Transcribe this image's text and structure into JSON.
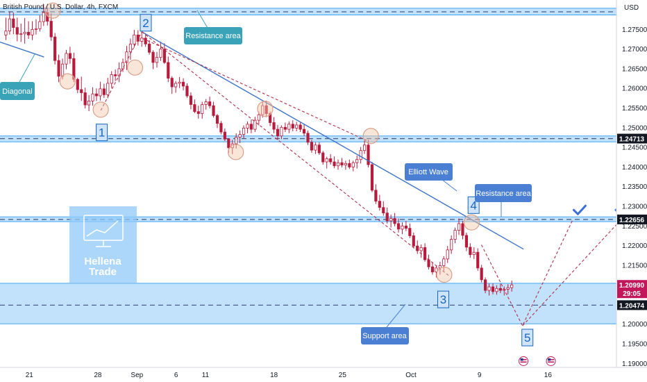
{
  "header": {
    "symbol_title": "British Pound / U.S. Dollar, 4h, FXCM",
    "currency": "USD"
  },
  "watermark": {
    "line1": "Hellena",
    "line2": "Trade"
  },
  "colors": {
    "zone_fill": "#90caf9",
    "zone_line": "#42a5f5",
    "trend_line": "#3d74c6",
    "projection": "#b0304a",
    "candle_up": "#b81a3c",
    "candle_down": "#b81a3c",
    "callout_teal": "#3ba3b8",
    "callout_blue": "#4a7fd4",
    "wave_label": "#1565c0",
    "price_tag_dark": "#131722",
    "price_tag_red": "#c2185b"
  },
  "chart_data": {
    "type": "candlestick",
    "title": "British Pound / U.S. Dollar, 4h, FXCM",
    "y_axis": {
      "ylim": [
        1.1889,
        1.2824
      ],
      "tick_labels": [
        "1.27500",
        "1.27000",
        "1.26500",
        "1.26000",
        "1.25500",
        "1.25000",
        "1.24500",
        "1.24000",
        "1.23500",
        "1.23000",
        "1.22500",
        "1.22000",
        "1.21500",
        "1.21000",
        "1.20500",
        "1.20000",
        "1.19500",
        "1.19000"
      ],
      "tick_values": [
        1.275,
        1.27,
        1.265,
        1.26,
        1.255,
        1.25,
        1.245,
        1.24,
        1.235,
        1.23,
        1.225,
        1.22,
        1.215,
        1.21,
        1.205,
        1.2,
        1.195,
        1.19
      ]
    },
    "x_axis": {
      "xlim_days": [
        0,
        63
      ],
      "tick_labels": [
        "21",
        "28",
        "Sep",
        "6",
        "11",
        "18",
        "25",
        "Oct",
        "9",
        "16"
      ],
      "tick_days": [
        3,
        10,
        14,
        18,
        21,
        28,
        35,
        42,
        49,
        56
      ]
    },
    "price_tags": [
      {
        "label": "1.24713",
        "price": 1.24713,
        "style": "dark"
      },
      {
        "label": "1.22656",
        "price": 1.22656,
        "style": "dark"
      },
      {
        "label": "1.20990",
        "sub": "29:05",
        "price": 1.2099,
        "style": "red"
      },
      {
        "label": "1.20474",
        "price": 1.20474,
        "style": "dark"
      }
    ],
    "zones": [
      {
        "name": "top-resistance-zone",
        "from": 1.2786,
        "to": 1.2803,
        "dashed_at": 1.2794
      },
      {
        "name": "mid-resistance-zone",
        "from": 1.2463,
        "to": 1.2478,
        "dashed_at": 1.24713
      },
      {
        "name": "resistance-zone",
        "from": 1.226,
        "to": 1.2272,
        "dashed_at": 1.22656
      },
      {
        "name": "support-zone",
        "from": 1.2,
        "to": 1.2103,
        "dashed_at": 1.20474
      }
    ],
    "trend_lines": [
      {
        "name": "diagonal-line",
        "from": {
          "day": 0,
          "price": 1.2717
        },
        "to": {
          "day": 4.5,
          "price": 1.2679
        }
      },
      {
        "name": "descending-trendline",
        "from": {
          "day": 14.5,
          "price": 1.2743
        },
        "to": {
          "day": 53.5,
          "price": 1.219
        }
      }
    ],
    "projection_paths": [
      {
        "name": "channel-line-1",
        "points": [
          {
            "day": 14.5,
            "price": 1.2743
          },
          {
            "day": 46,
            "price": 1.212
          }
        ]
      },
      {
        "name": "channel-line-2",
        "points": [
          {
            "day": 14.6,
            "price": 1.2726
          },
          {
            "day": 37.6,
            "price": 1.2465
          }
        ]
      },
      {
        "name": "wave-path-1-2",
        "points": [
          {
            "day": 10.3,
            "price": 1.2543
          },
          {
            "day": 14.5,
            "price": 1.2743
          }
        ]
      },
      {
        "name": "wave-path-forecast",
        "points": [
          {
            "day": 49.2,
            "price": 1.2201
          },
          {
            "day": 53.4,
            "price": 1.1995
          },
          {
            "day": 58.5,
            "price": 1.2263
          }
        ]
      },
      {
        "name": "wave-path-alt",
        "points": [
          {
            "day": 53.4,
            "price": 1.1995
          },
          {
            "day": 63.4,
            "price": 1.2263
          }
        ]
      }
    ],
    "circles": [
      {
        "day": 5.4,
        "price": 1.2797
      },
      {
        "day": 6.9,
        "price": 1.2617
      },
      {
        "day": 10.3,
        "price": 1.2545
      },
      {
        "day": 13.8,
        "price": 1.2652
      },
      {
        "day": 24.1,
        "price": 1.2437
      },
      {
        "day": 27.1,
        "price": 1.2547
      },
      {
        "day": 37.9,
        "price": 1.2478
      },
      {
        "day": 45.4,
        "price": 1.2125
      },
      {
        "day": 48.2,
        "price": 1.2258
      }
    ],
    "wave_labels": [
      {
        "label": "1",
        "day": 10.4,
        "price": 1.2487
      },
      {
        "label": "2",
        "day": 14.9,
        "price": 1.2766
      },
      {
        "label": "3",
        "day": 45.3,
        "price": 1.2062
      },
      {
        "label": "4",
        "day": 48.4,
        "price": 1.2302
      },
      {
        "label": "5",
        "day": 53.9,
        "price": 1.1965
      }
    ],
    "callouts": [
      {
        "name": "resistance-area-top",
        "text": "Resistance area",
        "style": "teal"
      },
      {
        "name": "diagonal",
        "text": "Diagonal",
        "style": "teal"
      },
      {
        "name": "elliott-wave",
        "text": "Elliott Wave",
        "style": "blue"
      },
      {
        "name": "resistance-area-right",
        "text": "Resistance area",
        "style": "blue"
      },
      {
        "name": "support-area",
        "text": "Support area",
        "style": "blue"
      }
    ],
    "checkmarks": [
      {
        "day": 59.2,
        "price": 1.2288
      },
      {
        "day": 63.5,
        "price": 1.2288
      }
    ],
    "event_markers": [
      {
        "day": 53.5,
        "price": 1.1905
      },
      {
        "day": 56.3,
        "price": 1.1905
      }
    ],
    "candles": [
      [
        1.2735,
        1.2779,
        1.2722,
        1.2745
      ],
      [
        1.2745,
        1.2795,
        1.2736,
        1.2776
      ],
      [
        1.2776,
        1.2792,
        1.2737,
        1.2754
      ],
      [
        1.2754,
        1.2779,
        1.2719,
        1.2737
      ],
      [
        1.2737,
        1.2764,
        1.2717,
        1.2738
      ],
      [
        1.2738,
        1.2778,
        1.2713,
        1.2742
      ],
      [
        1.2742,
        1.277,
        1.2725,
        1.2735
      ],
      [
        1.2735,
        1.277,
        1.2722,
        1.2749
      ],
      [
        1.2749,
        1.2775,
        1.2736,
        1.2751
      ],
      [
        1.2751,
        1.2785,
        1.2744,
        1.2769
      ],
      [
        1.2769,
        1.2813,
        1.2758,
        1.2792
      ],
      [
        1.2792,
        1.2804,
        1.2759,
        1.277
      ],
      [
        1.277,
        1.279,
        1.272,
        1.273
      ],
      [
        1.273,
        1.274,
        1.266,
        1.267
      ],
      [
        1.267,
        1.2685,
        1.2615,
        1.263
      ],
      [
        1.263,
        1.2675,
        1.2622,
        1.2661
      ],
      [
        1.2661,
        1.2697,
        1.2648,
        1.2688
      ],
      [
        1.2688,
        1.2705,
        1.2662,
        1.2675
      ],
      [
        1.2675,
        1.269,
        1.2615,
        1.2622
      ],
      [
        1.2622,
        1.2626,
        1.2587,
        1.2596
      ],
      [
        1.2596,
        1.2629,
        1.2567,
        1.2588
      ],
      [
        1.2588,
        1.2601,
        1.2548,
        1.2557
      ],
      [
        1.2557,
        1.2582,
        1.2541,
        1.2567
      ],
      [
        1.2567,
        1.2602,
        1.2555,
        1.2585
      ],
      [
        1.2585,
        1.2599,
        1.2567,
        1.258
      ],
      [
        1.258,
        1.2616,
        1.2568,
        1.2598
      ],
      [
        1.2598,
        1.2611,
        1.2575,
        1.2583
      ],
      [
        1.2583,
        1.2626,
        1.2574,
        1.2612
      ],
      [
        1.2612,
        1.2643,
        1.26,
        1.2634
      ],
      [
        1.2634,
        1.2647,
        1.2618,
        1.2631
      ],
      [
        1.2631,
        1.2665,
        1.2615,
        1.2649
      ],
      [
        1.2649,
        1.2675,
        1.2641,
        1.2665
      ],
      [
        1.2665,
        1.2707,
        1.2646,
        1.2692
      ],
      [
        1.2692,
        1.2726,
        1.2672,
        1.2712
      ],
      [
        1.2712,
        1.2748,
        1.2703,
        1.2735
      ],
      [
        1.2735,
        1.2747,
        1.2708,
        1.2719
      ],
      [
        1.2719,
        1.2746,
        1.2705,
        1.2727
      ],
      [
        1.2727,
        1.2738,
        1.2705,
        1.2712
      ],
      [
        1.2712,
        1.2722,
        1.2685,
        1.2691
      ],
      [
        1.2691,
        1.2696,
        1.2648,
        1.2665
      ],
      [
        1.2665,
        1.2692,
        1.2652,
        1.2678
      ],
      [
        1.2678,
        1.2718,
        1.2669,
        1.2699
      ],
      [
        1.2699,
        1.2714,
        1.2661,
        1.2665
      ],
      [
        1.2665,
        1.268,
        1.2615,
        1.2625
      ],
      [
        1.2625,
        1.263,
        1.2585,
        1.2603
      ],
      [
        1.2603,
        1.2618,
        1.2588,
        1.2612
      ],
      [
        1.2612,
        1.2628,
        1.26,
        1.2615
      ],
      [
        1.2615,
        1.2625,
        1.2594,
        1.2605
      ],
      [
        1.2605,
        1.2612,
        1.2575,
        1.258
      ],
      [
        1.258,
        1.2589,
        1.2546,
        1.2558
      ],
      [
        1.2558,
        1.2571,
        1.2536,
        1.254
      ],
      [
        1.254,
        1.2555,
        1.2522,
        1.2535
      ],
      [
        1.2535,
        1.2565,
        1.2522,
        1.2558
      ],
      [
        1.2558,
        1.2572,
        1.2545,
        1.2565
      ],
      [
        1.2565,
        1.2578,
        1.2548,
        1.2555
      ],
      [
        1.2555,
        1.2565,
        1.2525,
        1.253
      ],
      [
        1.253,
        1.2534,
        1.2498,
        1.251
      ],
      [
        1.251,
        1.2516,
        1.2482,
        1.2488
      ],
      [
        1.2488,
        1.2497,
        1.2465,
        1.247
      ],
      [
        1.247,
        1.2472,
        1.2435,
        1.2448
      ],
      [
        1.2448,
        1.2468,
        1.2432,
        1.2458
      ],
      [
        1.2458,
        1.2485,
        1.2446,
        1.2475
      ],
      [
        1.2475,
        1.2492,
        1.246,
        1.2482
      ],
      [
        1.2482,
        1.2505,
        1.2472,
        1.2498
      ],
      [
        1.2498,
        1.2515,
        1.2485,
        1.2508
      ],
      [
        1.2508,
        1.252,
        1.2485,
        1.2495
      ],
      [
        1.2495,
        1.2527,
        1.2488,
        1.2518
      ],
      [
        1.2518,
        1.254,
        1.2505,
        1.2532
      ],
      [
        1.2532,
        1.2566,
        1.2525,
        1.2555
      ],
      [
        1.2555,
        1.2568,
        1.2526,
        1.2535
      ],
      [
        1.2535,
        1.254,
        1.2503,
        1.2512
      ],
      [
        1.2512,
        1.2526,
        1.2485,
        1.2495
      ],
      [
        1.2495,
        1.2506,
        1.2468,
        1.2478
      ],
      [
        1.2478,
        1.2505,
        1.247,
        1.25
      ],
      [
        1.25,
        1.2512,
        1.2488,
        1.2495
      ],
      [
        1.2495,
        1.2515,
        1.2485,
        1.2508
      ],
      [
        1.2508,
        1.2518,
        1.249,
        1.2498
      ],
      [
        1.2498,
        1.2514,
        1.249,
        1.2506
      ],
      [
        1.2506,
        1.2512,
        1.2488,
        1.2495
      ],
      [
        1.2495,
        1.2508,
        1.2478,
        1.2485
      ],
      [
        1.2485,
        1.2492,
        1.2455,
        1.2462
      ],
      [
        1.2462,
        1.2468,
        1.2435,
        1.2442
      ],
      [
        1.2442,
        1.2462,
        1.2432,
        1.2455
      ],
      [
        1.2455,
        1.2462,
        1.243,
        1.2435
      ],
      [
        1.2435,
        1.244,
        1.2405,
        1.2412
      ],
      [
        1.2412,
        1.2425,
        1.2395,
        1.242
      ],
      [
        1.242,
        1.2432,
        1.2405,
        1.2412
      ],
      [
        1.2412,
        1.2426,
        1.2396,
        1.2402
      ],
      [
        1.2402,
        1.2418,
        1.2392,
        1.241
      ],
      [
        1.241,
        1.2422,
        1.2398,
        1.2404
      ],
      [
        1.2404,
        1.2415,
        1.2392,
        1.2408
      ],
      [
        1.2408,
        1.2418,
        1.2394,
        1.2399
      ],
      [
        1.2399,
        1.2415,
        1.2388,
        1.241
      ],
      [
        1.241,
        1.2428,
        1.2395,
        1.2418
      ],
      [
        1.2418,
        1.245,
        1.2408,
        1.2441
      ],
      [
        1.2441,
        1.2468,
        1.2432,
        1.2455
      ],
      [
        1.2455,
        1.2468,
        1.2398,
        1.2405
      ],
      [
        1.2405,
        1.2412,
        1.2335,
        1.234
      ],
      [
        1.234,
        1.2355,
        1.2305,
        1.2312
      ],
      [
        1.2312,
        1.2328,
        1.2288,
        1.2296
      ],
      [
        1.2296,
        1.2312,
        1.2275,
        1.2282
      ],
      [
        1.2282,
        1.2296,
        1.2255,
        1.2262
      ],
      [
        1.2262,
        1.2278,
        1.2245,
        1.2268
      ],
      [
        1.2268,
        1.2282,
        1.2248,
        1.2255
      ],
      [
        1.2255,
        1.2268,
        1.2232,
        1.2241
      ],
      [
        1.2241,
        1.2258,
        1.2228,
        1.2249
      ],
      [
        1.2249,
        1.2262,
        1.2236,
        1.2243
      ],
      [
        1.2243,
        1.2255,
        1.2218,
        1.2224
      ],
      [
        1.2224,
        1.2232,
        1.2192,
        1.2198
      ],
      [
        1.2198,
        1.2212,
        1.2178,
        1.2186
      ],
      [
        1.2186,
        1.2202,
        1.2168,
        1.2194
      ],
      [
        1.2194,
        1.2205,
        1.2158,
        1.2163
      ],
      [
        1.2163,
        1.2176,
        1.2138,
        1.2145
      ],
      [
        1.2145,
        1.2156,
        1.2125,
        1.2132
      ],
      [
        1.2132,
        1.2148,
        1.2118,
        1.2142
      ],
      [
        1.2142,
        1.2158,
        1.2125,
        1.2148
      ],
      [
        1.2148,
        1.2172,
        1.2135,
        1.2165
      ],
      [
        1.2165,
        1.2198,
        1.2155,
        1.2188
      ],
      [
        1.2188,
        1.2225,
        1.2178,
        1.2215
      ],
      [
        1.2215,
        1.2245,
        1.2205,
        1.2238
      ],
      [
        1.2238,
        1.2268,
        1.2226,
        1.2255
      ],
      [
        1.2255,
        1.2262,
        1.2215,
        1.2225
      ],
      [
        1.2225,
        1.2232,
        1.2185,
        1.2195
      ],
      [
        1.2195,
        1.2205,
        1.2168,
        1.2176
      ],
      [
        1.2176,
        1.2195,
        1.2165,
        1.2182
      ],
      [
        1.2182,
        1.2192,
        1.2135,
        1.2142
      ],
      [
        1.2142,
        1.215,
        1.2105,
        1.2112
      ],
      [
        1.2112,
        1.2118,
        1.2078,
        1.2085
      ],
      [
        1.2085,
        1.2102,
        1.2072,
        1.2094
      ],
      [
        1.2094,
        1.2103,
        1.2075,
        1.2082
      ],
      [
        1.2082,
        1.2098,
        1.2074,
        1.209
      ],
      [
        1.209,
        1.2102,
        1.2078,
        1.2085
      ],
      [
        1.2085,
        1.2095,
        1.2072,
        1.2088
      ],
      [
        1.2088,
        1.2101,
        1.2075,
        1.2092
      ],
      [
        1.2092,
        1.211,
        1.2082,
        1.2099
      ]
    ]
  }
}
